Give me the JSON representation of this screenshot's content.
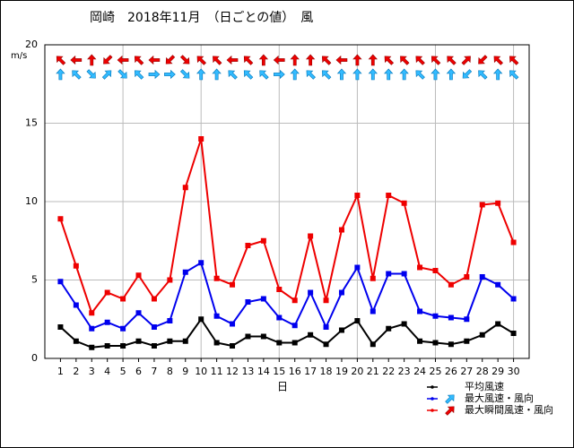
{
  "chart_data": {
    "type": "line",
    "title": "岡崎　2018年11月　（日ごとの値）　風",
    "y_label": "m/s",
    "x_label": "日",
    "x": [
      1,
      2,
      3,
      4,
      5,
      6,
      7,
      8,
      9,
      10,
      11,
      12,
      13,
      14,
      15,
      16,
      17,
      18,
      19,
      20,
      21,
      22,
      23,
      24,
      25,
      26,
      27,
      28,
      29,
      30
    ],
    "xlim": [
      0,
      31
    ],
    "xticks": [
      1,
      2,
      3,
      4,
      5,
      6,
      7,
      8,
      9,
      10,
      11,
      12,
      13,
      14,
      15,
      16,
      17,
      18,
      19,
      20,
      21,
      22,
      23,
      24,
      25,
      26,
      27,
      28,
      29,
      30
    ],
    "ylim": [
      0,
      20
    ],
    "yticks": [
      0,
      5,
      10,
      15,
      20
    ],
    "grid": true,
    "series": [
      {
        "name": "平均風速",
        "color": "#000000",
        "values": [
          2.0,
          1.1,
          0.7,
          0.8,
          0.8,
          1.1,
          0.8,
          1.1,
          1.1,
          2.5,
          1.0,
          0.8,
          1.4,
          1.4,
          1.0,
          1.0,
          1.5,
          0.9,
          1.8,
          2.4,
          0.9,
          1.9,
          2.2,
          1.1,
          1.0,
          0.9,
          1.1,
          1.5,
          2.2,
          1.6
        ]
      },
      {
        "name": "最大風速・風向",
        "color": "#0000ee",
        "arrow_color": "#33bbff",
        "values": [
          4.9,
          3.4,
          1.9,
          2.3,
          1.9,
          2.9,
          2.0,
          2.4,
          5.5,
          6.1,
          2.7,
          2.2,
          3.6,
          3.8,
          2.6,
          2.1,
          4.2,
          2.0,
          4.2,
          5.8,
          3.0,
          5.4,
          5.4,
          3.0,
          2.7,
          2.6,
          2.5,
          5.2,
          4.7,
          3.8
        ],
        "directions": [
          "N",
          "NW",
          "SE",
          "NE",
          "SE",
          "NW",
          "E",
          "E",
          "SE",
          "N",
          "N",
          "NW",
          "NW",
          "NW",
          "E",
          "N",
          "NW",
          "NW",
          "N",
          "N",
          "N",
          "N",
          "N",
          "NW",
          "N",
          "N",
          "SW",
          "NW",
          "N",
          "NW"
        ]
      },
      {
        "name": "最大瞬間風速・風向",
        "color": "#ee0000",
        "arrow_color": "#ee0000",
        "values": [
          8.9,
          5.9,
          2.9,
          4.2,
          3.8,
          5.3,
          3.8,
          5.0,
          10.9,
          14.0,
          5.1,
          4.7,
          7.2,
          7.5,
          4.4,
          3.7,
          7.8,
          3.7,
          8.2,
          10.4,
          5.1,
          10.4,
          9.9,
          5.8,
          5.6,
          4.7,
          5.2,
          9.8,
          9.9,
          7.4
        ],
        "directions": [
          "NW",
          "W",
          "N",
          "SW",
          "W",
          "NW",
          "W",
          "SW",
          "SE",
          "NW",
          "NW",
          "W",
          "NW",
          "N",
          "W",
          "N",
          "N",
          "NW",
          "W",
          "N",
          "N",
          "NW",
          "NW",
          "NW",
          "NW",
          "NW",
          "NE",
          "SW",
          "NW",
          "NW"
        ]
      }
    ]
  }
}
